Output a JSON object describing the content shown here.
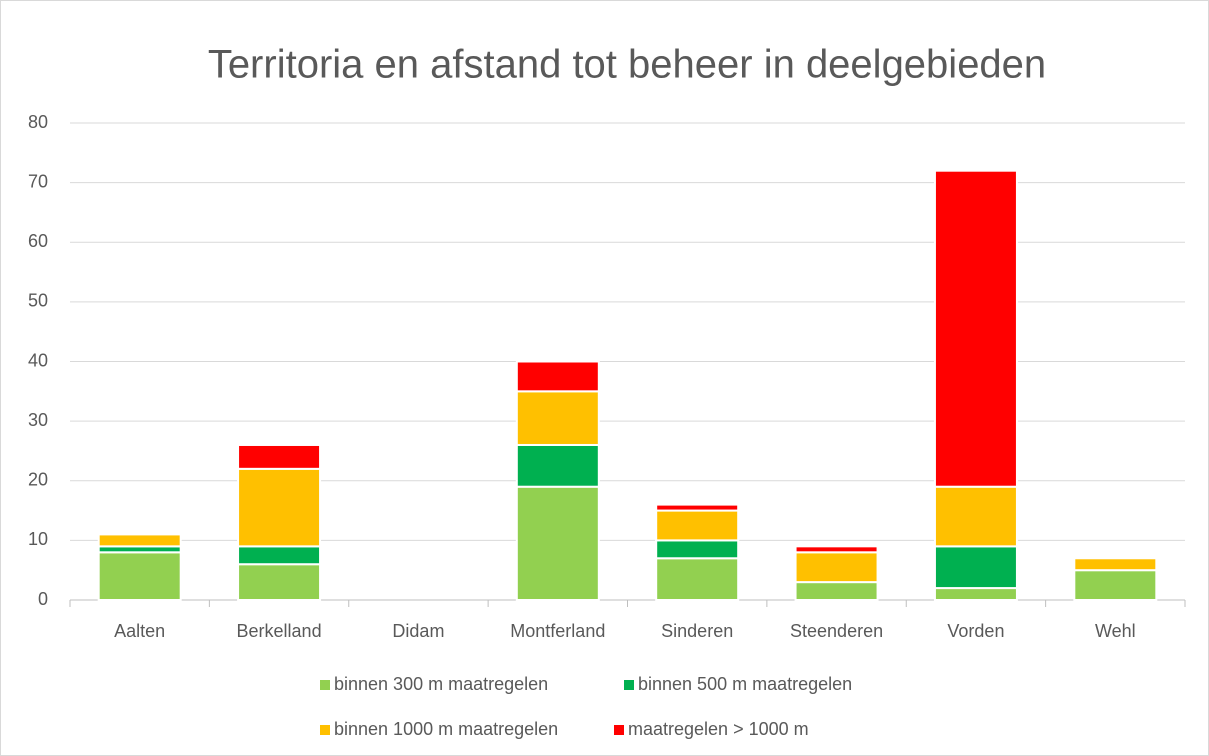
{
  "chart_data": {
    "type": "bar",
    "stacked": true,
    "title": "Territoria en afstand tot beheer in deelgebieden",
    "categories": [
      "Aalten",
      "Berkelland",
      "Didam",
      "Montferland",
      "Sinderen",
      "Steenderen",
      "Vorden",
      "Wehl"
    ],
    "series": [
      {
        "name": "binnen 300 m maatregelen",
        "color": "#92d050",
        "values": [
          8,
          6,
          0,
          19,
          7,
          3,
          2,
          5
        ]
      },
      {
        "name": "binnen 500 m maatregelen",
        "color": "#00b050",
        "values": [
          1,
          3,
          0,
          7,
          3,
          0,
          7,
          0
        ]
      },
      {
        "name": "binnen 1000 m maatregelen",
        "color": "#ffc000",
        "values": [
          2,
          13,
          0,
          9,
          5,
          5,
          10,
          2
        ]
      },
      {
        "name": "maatregelen > 1000 m",
        "color": "#ff0000",
        "values": [
          0,
          4,
          0,
          5,
          1,
          1,
          53,
          0
        ]
      }
    ],
    "ylim": [
      0,
      80
    ],
    "yticks": [
      0,
      10,
      20,
      30,
      40,
      50,
      60,
      70,
      80
    ],
    "grid": true,
    "legend": "bottom"
  }
}
